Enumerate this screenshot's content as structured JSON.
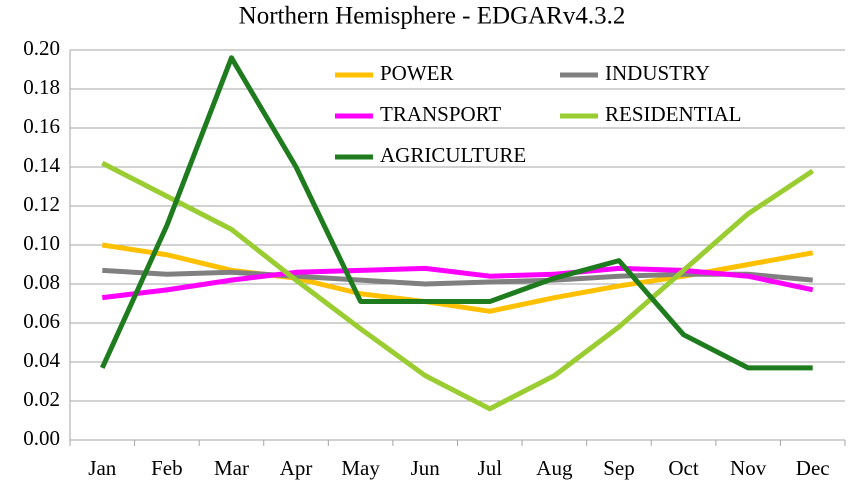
{
  "chart_data": {
    "type": "line",
    "title": "Northern Hemisphere - EDGARv4.3.2",
    "categories": [
      "Jan",
      "Feb",
      "Mar",
      "Apr",
      "May",
      "Jun",
      "Jul",
      "Aug",
      "Sep",
      "Oct",
      "Nov",
      "Dec"
    ],
    "series": [
      {
        "name": "POWER",
        "color": "#ffc000",
        "values": [
          0.1,
          0.095,
          0.087,
          0.083,
          0.075,
          0.071,
          0.066,
          0.073,
          0.079,
          0.084,
          0.09,
          0.096
        ]
      },
      {
        "name": "INDUSTRY",
        "color": "#808080",
        "values": [
          0.087,
          0.085,
          0.086,
          0.084,
          0.082,
          0.08,
          0.081,
          0.082,
          0.084,
          0.085,
          0.085,
          0.082
        ]
      },
      {
        "name": "TRANSPORT",
        "color": "#ff00ff",
        "values": [
          0.073,
          0.077,
          0.082,
          0.086,
          0.087,
          0.088,
          0.084,
          0.085,
          0.088,
          0.087,
          0.084,
          0.077
        ]
      },
      {
        "name": "RESIDENTIAL",
        "color": "#9acd32",
        "values": [
          0.142,
          0.125,
          0.108,
          0.082,
          0.057,
          0.033,
          0.016,
          0.033,
          0.058,
          0.087,
          0.116,
          0.138
        ]
      },
      {
        "name": "AGRICULTURE",
        "color": "#1e7b1e",
        "values": [
          0.037,
          0.11,
          0.196,
          0.14,
          0.071,
          0.071,
          0.071,
          0.083,
          0.092,
          0.054,
          0.037,
          0.037
        ]
      }
    ],
    "ylim": [
      0,
      0.2
    ],
    "yticks": [
      {
        "value": 0,
        "label": "0.00"
      },
      {
        "value": 0.02,
        "label": "0.02"
      },
      {
        "value": 0.04,
        "label": "0.04"
      },
      {
        "value": 0.06,
        "label": "0.06"
      },
      {
        "value": 0.08,
        "label": "0.08"
      },
      {
        "value": 0.1,
        "label": "0.10"
      },
      {
        "value": 0.12,
        "label": "0.12"
      },
      {
        "value": 0.14,
        "label": "0.14"
      },
      {
        "value": 0.16,
        "label": "0.16"
      },
      {
        "value": 0.18,
        "label": "0.18"
      },
      {
        "value": 0.2,
        "label": "0.20"
      }
    ],
    "grid": true
  }
}
